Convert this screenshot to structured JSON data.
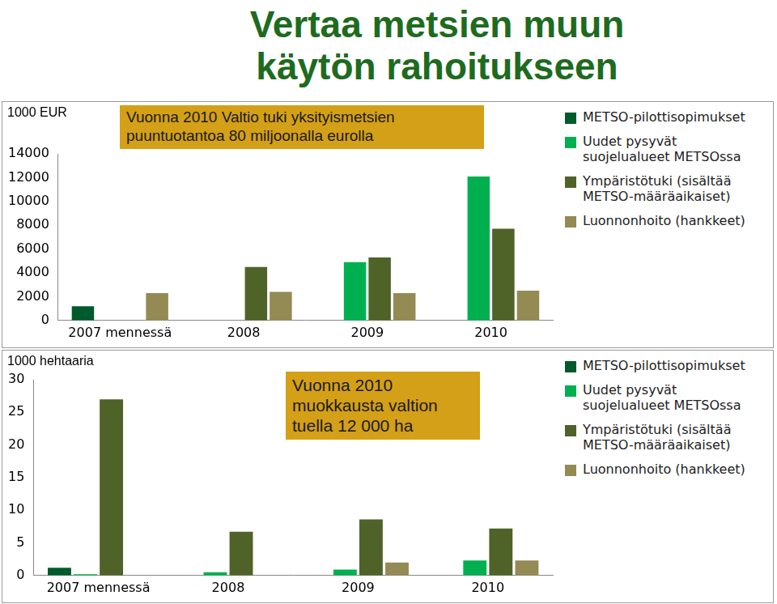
{
  "title": "Vertaa metsien muun käytön rahoitukseen",
  "chart_data": [
    {
      "type": "bar",
      "y_label": "1000 EUR",
      "annotation": "Vuonna 2010 Valtio tuki yksityismetsien puuntuotantoa 80 miljoonalla eurolla",
      "categories": [
        "2007 mennessä",
        "2008",
        "2009",
        "2010"
      ],
      "series": [
        {
          "name": "METSO-pilottisopimukset",
          "color": "#005a2b",
          "values": [
            1200,
            null,
            null,
            null
          ]
        },
        {
          "name": "Uudet pysyvät suojelualueet METSOssa",
          "color": "#00b050",
          "values": [
            null,
            null,
            4900,
            12100
          ]
        },
        {
          "name": "Ympäristötuki (sisältää METSO-määräaikaiset)",
          "color": "#4f6228",
          "values": [
            null,
            4500,
            5300,
            7700
          ]
        },
        {
          "name": "Luonnonhoito (hankkeet)",
          "color": "#948a54",
          "values": [
            2300,
            2400,
            2300,
            2500
          ]
        }
      ],
      "ylim": [
        0,
        14000
      ],
      "yticks": [
        0,
        2000,
        4000,
        6000,
        8000,
        10000,
        12000,
        14000
      ],
      "grid": false,
      "legend": "right"
    },
    {
      "type": "bar",
      "y_label": "1000 hehtaaria",
      "annotation": "Vuonna 2010 muokkausta valtion tuella 12 000 ha",
      "categories": [
        "2007 mennessä",
        "2008",
        "2009",
        "2010"
      ],
      "series": [
        {
          "name": "METSO-pilottisopimukset",
          "color": "#005a2b",
          "values": [
            1.2,
            null,
            null,
            null
          ]
        },
        {
          "name": "Uudet pysyvät suojelualueet METSOssa",
          "color": "#00b050",
          "values": [
            0.2,
            0.5,
            0.9,
            2.3
          ]
        },
        {
          "name": "Ympäristötuki (sisältää METSO-määräaikaiset)",
          "color": "#4f6228",
          "values": [
            27,
            6.7,
            8.6,
            7.2
          ]
        },
        {
          "name": "Luonnonhoito (hankkeet)",
          "color": "#948a54",
          "values": [
            null,
            null,
            2.0,
            2.3
          ]
        }
      ],
      "ylim": [
        0,
        30
      ],
      "yticks": [
        0,
        5,
        10,
        15,
        20,
        25,
        30
      ],
      "grid": false,
      "legend": "right"
    }
  ]
}
